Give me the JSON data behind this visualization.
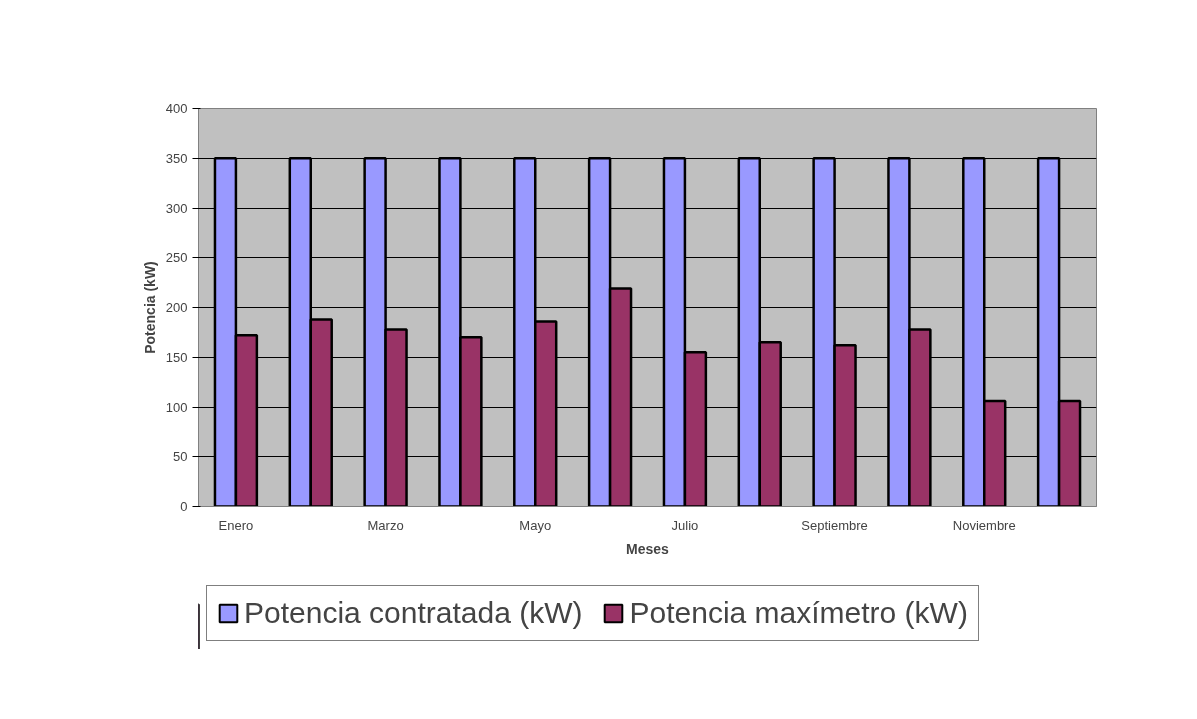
{
  "chart_data": {
    "type": "bar",
    "xlabel": "Meses",
    "ylabel": "Potencia (kW)",
    "categories": [
      "Enero",
      null,
      "Marzo",
      null,
      "Mayo",
      null,
      "Julio",
      null,
      "Septiembre",
      null,
      "Noviembre",
      null
    ],
    "series": [
      {
        "name": "Potencia contratada (kW)",
        "color": "#9999ff",
        "values": [
          350,
          350,
          350,
          350,
          350,
          350,
          350,
          350,
          350,
          350,
          350,
          350
        ]
      },
      {
        "name": "Potencia maxímetro (kW)",
        "color": "#993366",
        "values": [
          172,
          188,
          178,
          170,
          186,
          219,
          155,
          165,
          162,
          178,
          106,
          106
        ]
      }
    ],
    "ylim": [
      0,
      400
    ],
    "yticks": [
      0,
      50,
      100,
      150,
      200,
      250,
      300,
      350,
      400
    ],
    "grid": "y",
    "legend": "bottom"
  }
}
